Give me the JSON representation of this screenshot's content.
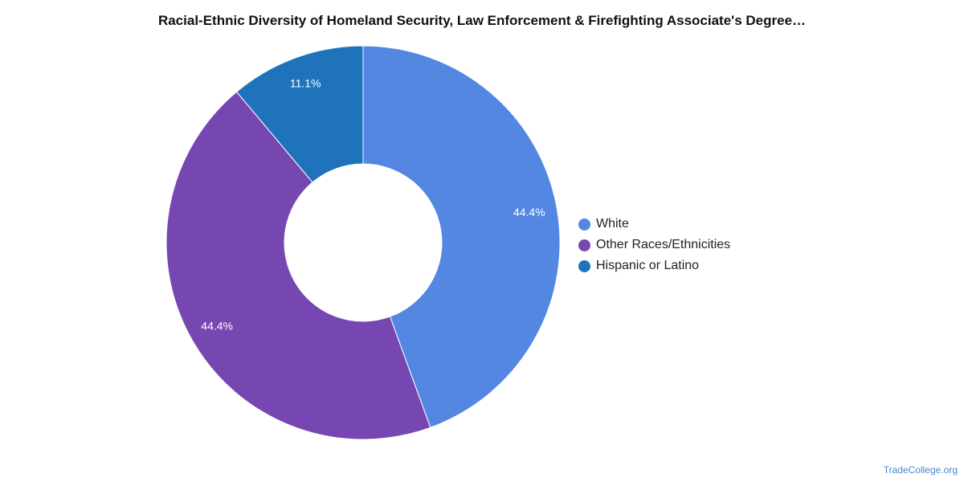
{
  "chart_data": {
    "type": "pie",
    "title": "Racial-Ethnic Diversity of Homeland Security, Law Enforcement & Firefighting Associate's Degree…",
    "donut": true,
    "legend_position": "right",
    "slices": [
      {
        "label": "White",
        "value": 44.4,
        "display": "44.4%",
        "color": "#5387e2"
      },
      {
        "label": "Other Races/Ethnicities",
        "value": 44.4,
        "display": "44.4%",
        "color": "#7647b0"
      },
      {
        "label": "Hispanic or Latino",
        "value": 11.1,
        "display": "11.1%",
        "color": "#1f73bb"
      }
    ]
  },
  "watermark": "TradeCollege.org"
}
